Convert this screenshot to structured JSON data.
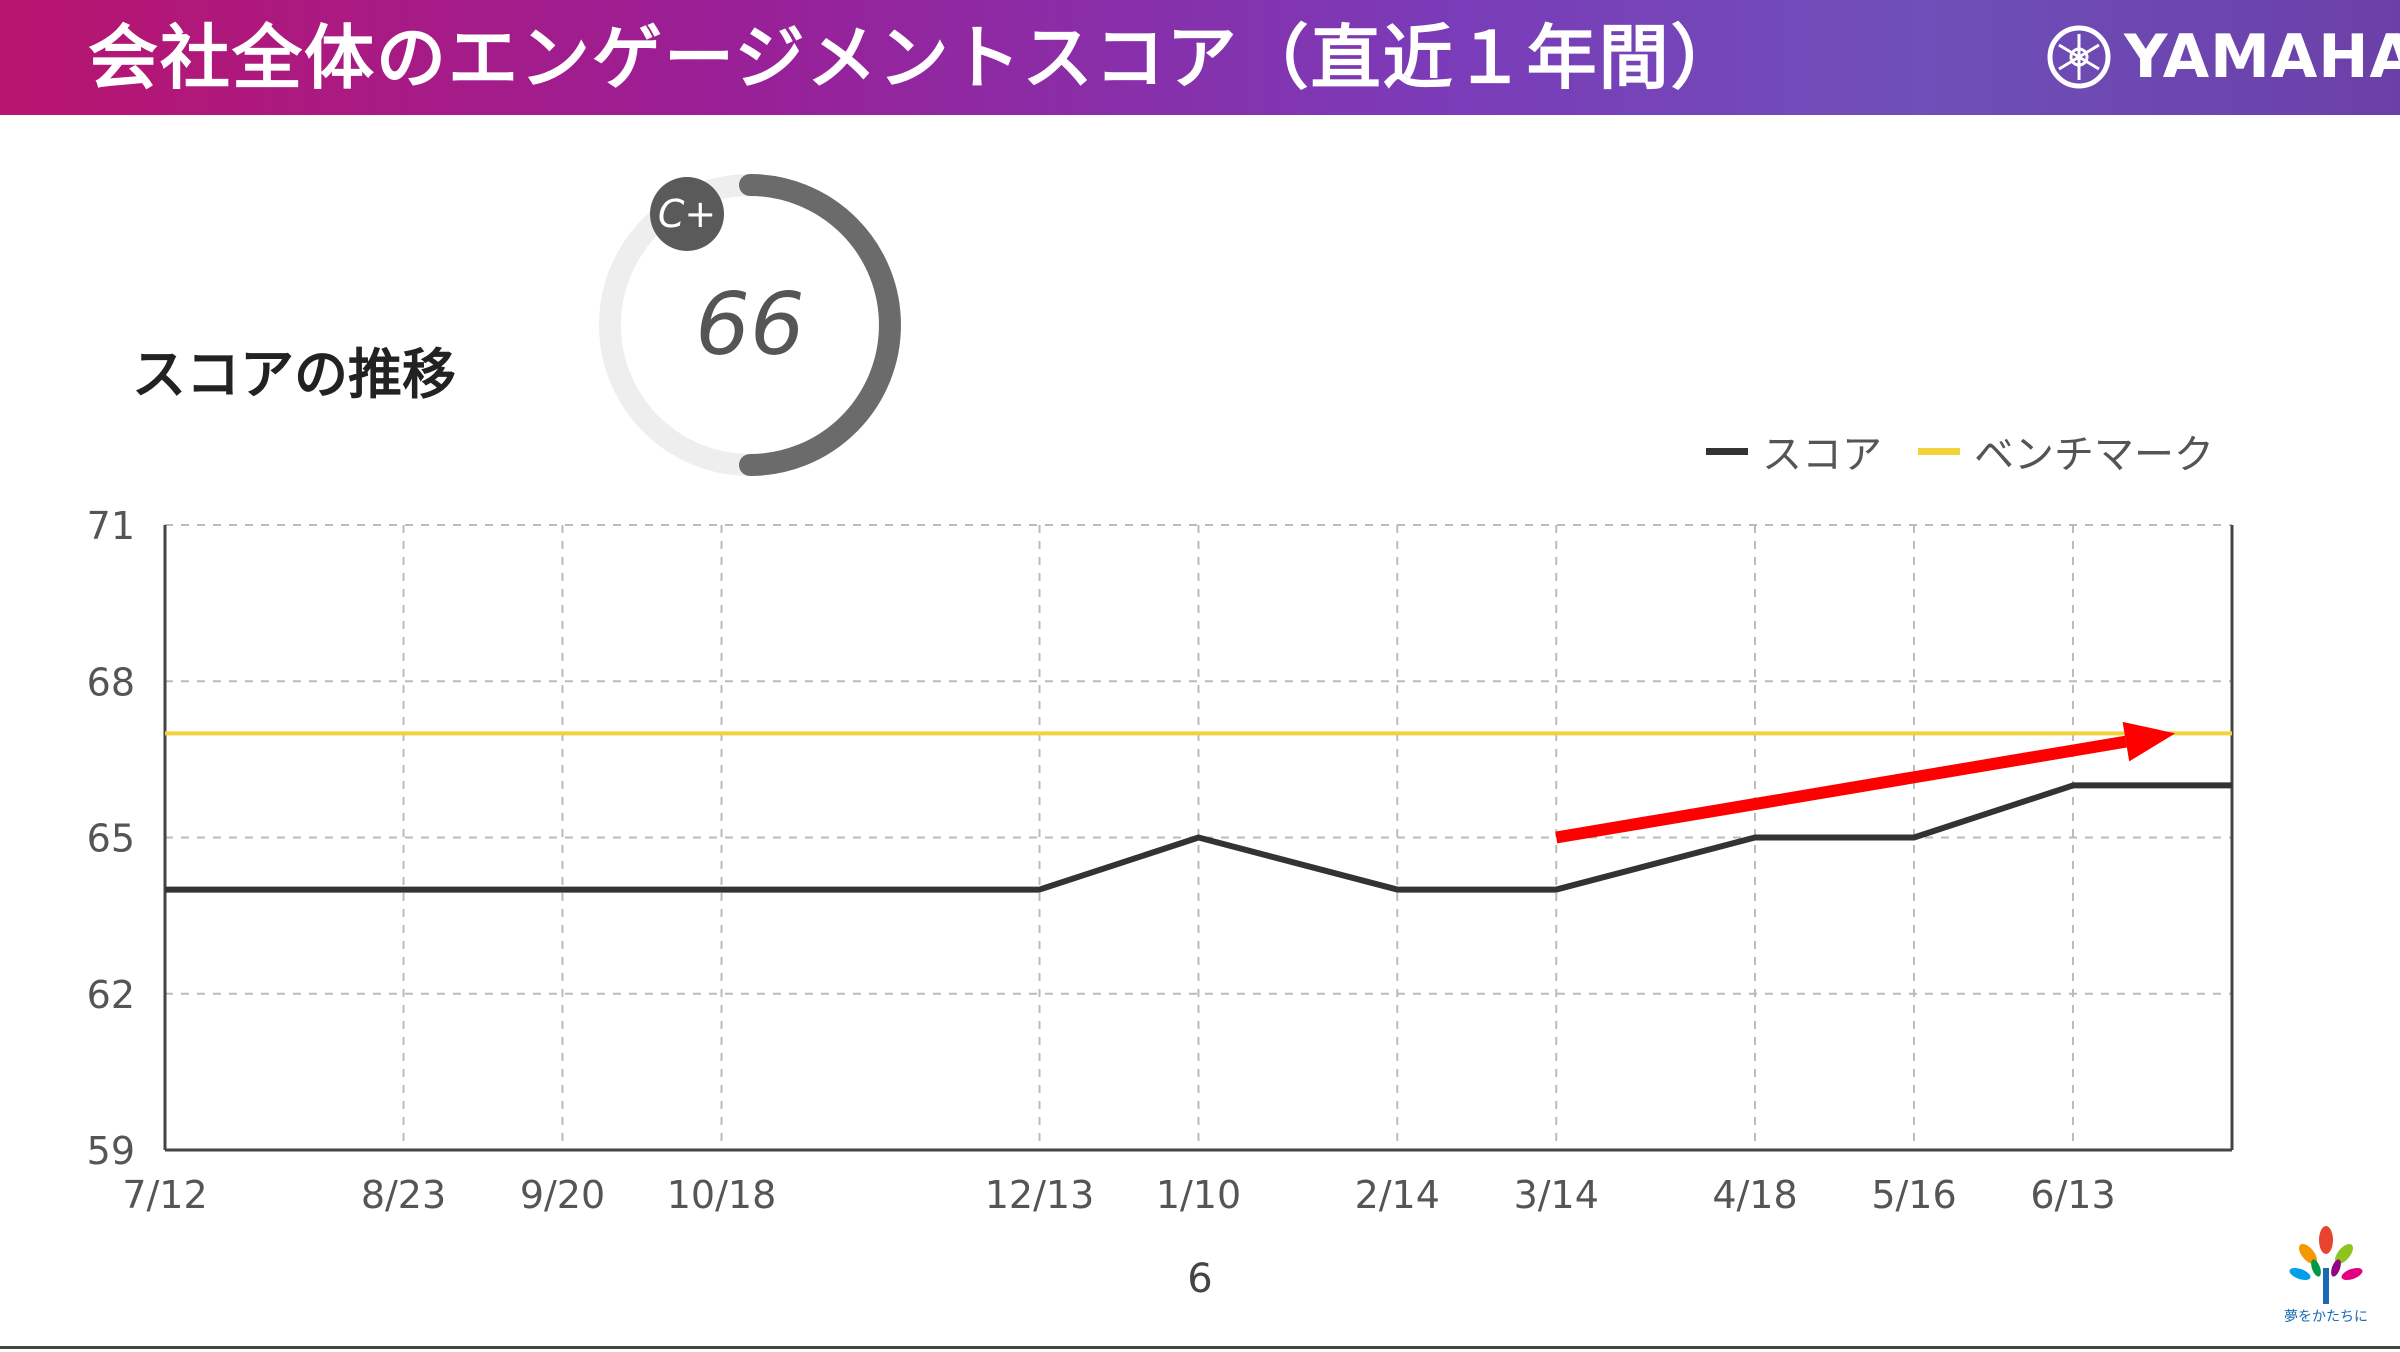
{
  "slide": {
    "title": "会社全体のエンゲージメントスコア（直近１年間）",
    "brand": "YAMAHA",
    "section_title": "スコアの推移",
    "page_number": "6",
    "footer_tagline": "夢をかたちに"
  },
  "score_gauge": {
    "value": "66",
    "grade": "C+",
    "fill_fraction": 0.66
  },
  "colors": {
    "header_gradient_start": "#b8156f",
    "header_gradient_end": "#6b3fa8",
    "score_line": "#333333",
    "benchmark_line": "#f2d33c",
    "arrow": "#ff0000",
    "gauge": "#6b6b6b",
    "gauge_track": "#eeeeee"
  },
  "chart_data": {
    "type": "line",
    "title": "",
    "xlabel": "",
    "ylabel": "",
    "ylim": [
      59,
      71
    ],
    "y_ticks": [
      59,
      62,
      65,
      68,
      71
    ],
    "x_ticks": [
      "7/12",
      "8/23",
      "9/20",
      "10/18",
      "12/13",
      "1/10",
      "2/14",
      "3/14",
      "4/18",
      "5/16",
      "6/13"
    ],
    "x_dates": [
      "2022-07-12",
      "2022-08-23",
      "2022-09-20",
      "2022-10-18",
      "2022-12-13",
      "2023-01-10",
      "2023-02-14",
      "2023-03-14",
      "2023-04-18",
      "2023-05-16",
      "2023-06-13"
    ],
    "x_end_date": "2023-07-11",
    "grid": true,
    "legend_position": "top-right",
    "series": [
      {
        "name": "スコア",
        "color": "#333333",
        "points": [
          {
            "x": "2022-07-12",
            "y": 64
          },
          {
            "x": "2022-12-13",
            "y": 64
          },
          {
            "x": "2023-01-10",
            "y": 65
          },
          {
            "x": "2023-02-14",
            "y": 64
          },
          {
            "x": "2023-03-14",
            "y": 64
          },
          {
            "x": "2023-04-18",
            "y": 65
          },
          {
            "x": "2023-05-16",
            "y": 65
          },
          {
            "x": "2023-06-13",
            "y": 66
          },
          {
            "x": "2023-07-11",
            "y": 66
          }
        ]
      },
      {
        "name": "ベンチマーク",
        "color": "#f2d33c",
        "points": [
          {
            "x": "2022-07-12",
            "y": 67
          },
          {
            "x": "2023-07-11",
            "y": 67
          }
        ]
      }
    ],
    "annotations": [
      {
        "type": "arrow",
        "color": "#ff0000",
        "from": {
          "x": "2023-03-14",
          "y": 65
        },
        "to": {
          "x": "2023-07-01",
          "y": 67
        }
      }
    ]
  }
}
